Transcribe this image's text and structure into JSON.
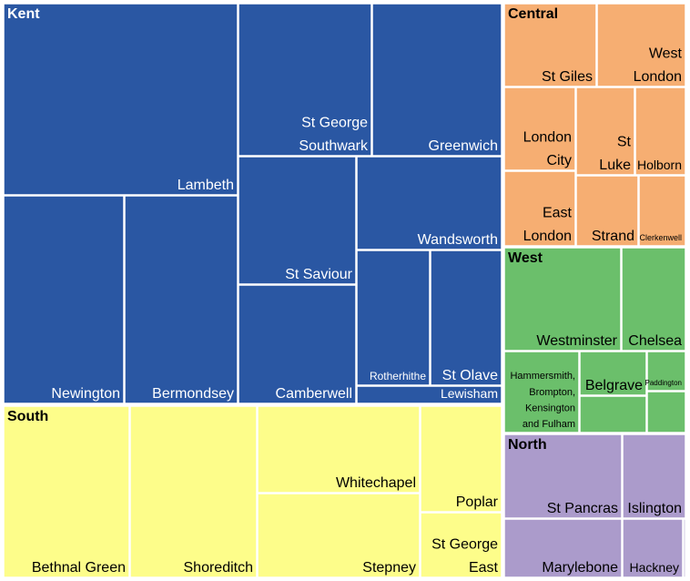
{
  "chart_data": {
    "type": "treemap",
    "colors": {
      "Kent": "#2a57a3",
      "Central": "#f6ae72",
      "West": "#6bbf6b",
      "South": "#fdfd8a",
      "North": "#ab9bcb"
    },
    "text_colors": {
      "Kent": "#ffffff",
      "Central": "#000000",
      "West": "#000000",
      "South": "#000000",
      "North": "#000000"
    },
    "groups": [
      {
        "name": "Kent",
        "children": [
          {
            "label": "Lambeth"
          },
          {
            "label": "St George\nSouthwark"
          },
          {
            "label": "Greenwich"
          },
          {
            "label": "Newington"
          },
          {
            "label": "Bermondsey"
          },
          {
            "label": "St Saviour"
          },
          {
            "label": "Camberwell"
          },
          {
            "label": "Wandsworth"
          },
          {
            "label": "Rotherhithe"
          },
          {
            "label": "St Olave"
          },
          {
            "label": "Lewisham"
          }
        ]
      },
      {
        "name": "Central",
        "children": [
          {
            "label": "St Giles"
          },
          {
            "label": "West\nLondon"
          },
          {
            "label": "London\nCity"
          },
          {
            "label": "St\nLuke"
          },
          {
            "label": "Holborn"
          },
          {
            "label": "East\nLondon"
          },
          {
            "label": "Strand"
          },
          {
            "label": "Clerkenwell"
          }
        ]
      },
      {
        "name": "West",
        "children": [
          {
            "label": "Westminster"
          },
          {
            "label": "Chelsea"
          },
          {
            "label": "Hammersmith,\nBrompton,\nKensington\nand Fulham"
          },
          {
            "label": "Belgrave"
          },
          {
            "label": ""
          },
          {
            "label": "Paddington"
          },
          {
            "label": ""
          }
        ]
      },
      {
        "name": "South",
        "children": [
          {
            "label": "Bethnal Green"
          },
          {
            "label": "Shoreditch"
          },
          {
            "label": "Whitechapel"
          },
          {
            "label": "Stepney"
          },
          {
            "label": "Poplar"
          },
          {
            "label": "St George\nEast"
          }
        ]
      },
      {
        "name": "North",
        "children": [
          {
            "label": "St Pancras"
          },
          {
            "label": "Islington"
          },
          {
            "label": "Marylebone"
          },
          {
            "label": "Hackney"
          },
          {
            "label": ""
          }
        ]
      }
    ]
  }
}
